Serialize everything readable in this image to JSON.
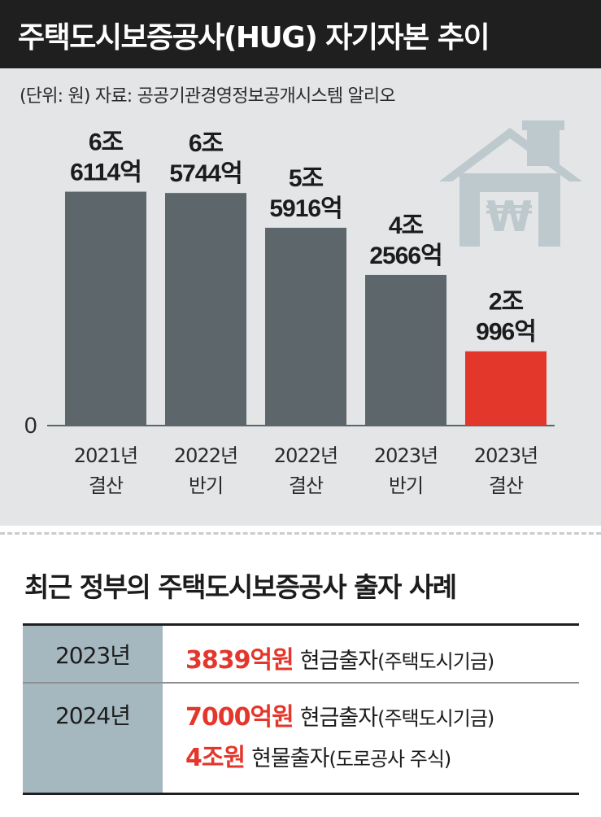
{
  "header": {
    "title": "주택도시보증공사(HUG) 자기자본 추이"
  },
  "source_line": "(단위: 원)  자료: 공공기관경영정보공개시스템 알리오",
  "icon": {
    "name": "house-won-icon",
    "color": "#bdc9cd"
  },
  "chart_data": {
    "type": "bar",
    "title": "주택도시보증공사(HUG) 자기자본 추이",
    "unit": "원",
    "categories": [
      [
        "2021년",
        "결산"
      ],
      [
        "2022년",
        "반기"
      ],
      [
        "2022년",
        "결산"
      ],
      [
        "2023년",
        "반기"
      ],
      [
        "2023년",
        "결산"
      ]
    ],
    "values": [
      66114,
      65744,
      55916,
      42566,
      20996
    ],
    "value_unit": "억원",
    "value_labels": [
      [
        "6조",
        "6114억"
      ],
      [
        "6조",
        "5744억"
      ],
      [
        "5조",
        "5916억"
      ],
      [
        "4조",
        "2566억"
      ],
      [
        "2조",
        "996억"
      ]
    ],
    "bar_colors": [
      "#5d666a",
      "#5d666a",
      "#5d666a",
      "#5d666a",
      "#e4372c"
    ],
    "y_tick_labels": [
      "0"
    ],
    "ylim": [
      0,
      69000
    ],
    "grid": false,
    "legend": "none"
  },
  "section": {
    "title": "최근 정부의 주택도시보증공사 출자 사례",
    "rows": [
      {
        "year": "2023년",
        "items": [
          {
            "amount": "3839억원",
            "type": "현금출자",
            "note": "(주택도시기금)"
          }
        ]
      },
      {
        "year": "2024년",
        "items": [
          {
            "amount": "7000억원",
            "type": "현금출자",
            "note": "(주택도시기금)"
          },
          {
            "amount": "4조원",
            "type": "현물출자",
            "note": "(도로공사 주식)"
          }
        ]
      }
    ]
  },
  "colors": {
    "header_bg": "#1f1f1f",
    "panel_bg": "#e3e5e6",
    "bar": "#5d666a",
    "highlight": "#e4372c",
    "year_cell": "#a6b8bf"
  }
}
